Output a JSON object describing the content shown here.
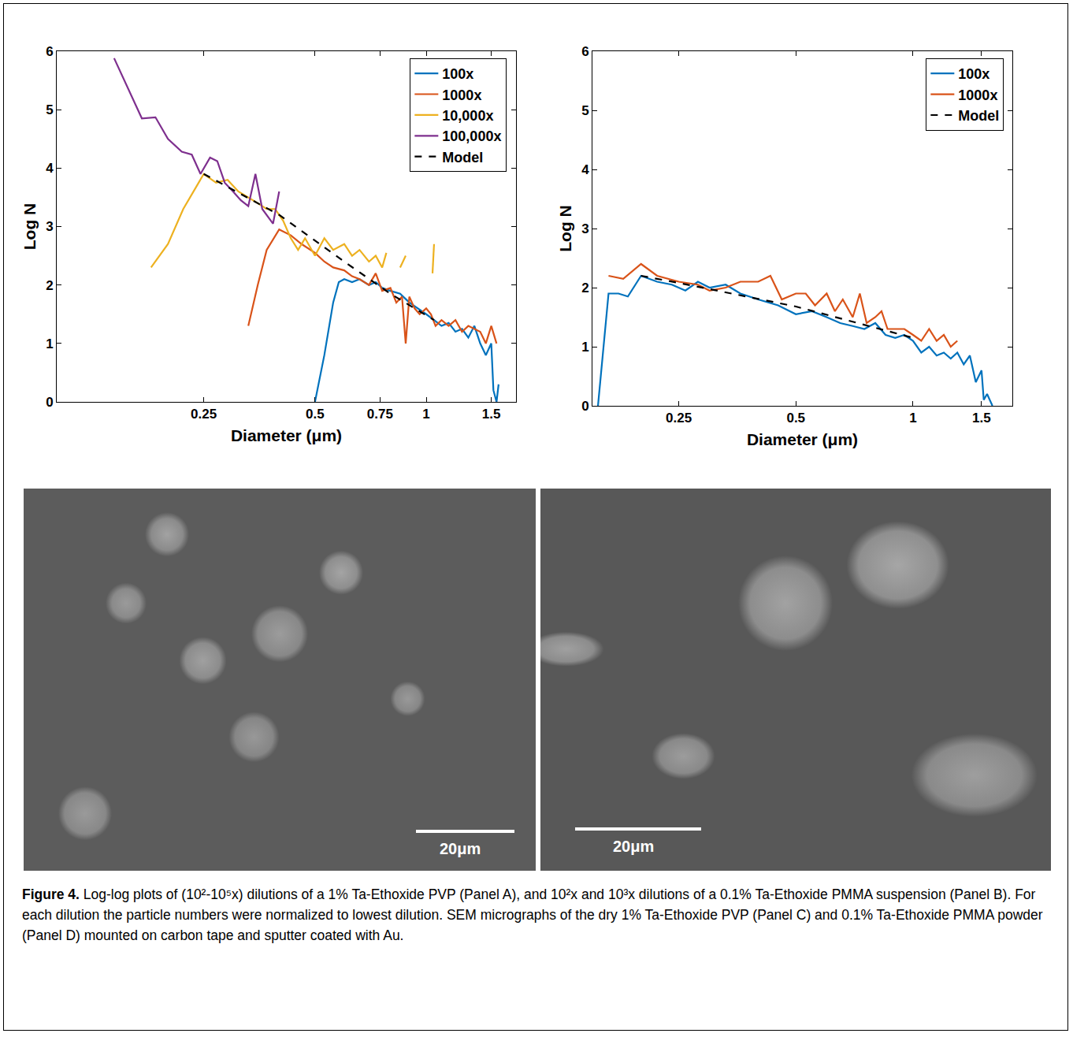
{
  "chart_data": [
    {
      "type": "line",
      "xlabel": "Diameter (μm)",
      "ylabel": "Log N",
      "log": "x",
      "grid": false,
      "legend": "top right",
      "xlim": [
        0.1,
        1.75
      ],
      "ylim": [
        0,
        6
      ],
      "xticks": [
        0.25,
        0.5,
        0.75,
        1,
        1.5
      ],
      "yticks": [
        0,
        1,
        2,
        3,
        4,
        5,
        6
      ],
      "series": [
        {
          "name": "100x",
          "color": "#0072BD",
          "line_style": "solid",
          "x": [
            0.5,
            0.53,
            0.56,
            0.58,
            0.6,
            0.63,
            0.66,
            0.7,
            0.73,
            0.76,
            0.8,
            0.85,
            0.9,
            0.95,
            1.0,
            1.05,
            1.1,
            1.15,
            1.2,
            1.25,
            1.3,
            1.35,
            1.4,
            1.45,
            1.5,
            1.52,
            1.55,
            1.57
          ],
          "values": [
            0,
            0.8,
            1.7,
            2.05,
            2.1,
            2.05,
            2.1,
            2.0,
            2.05,
            1.95,
            1.9,
            1.85,
            1.7,
            1.6,
            1.5,
            1.4,
            1.3,
            1.35,
            1.2,
            1.25,
            1.1,
            1.3,
            1.0,
            0.8,
            1.0,
            0.2,
            0,
            0.3
          ]
        },
        {
          "name": "1000x",
          "color": "#D95319",
          "line_style": "solid",
          "x": [
            0.33,
            0.35,
            0.37,
            0.4,
            0.43,
            0.46,
            0.5,
            0.53,
            0.56,
            0.6,
            0.63,
            0.66,
            0.7,
            0.73,
            0.76,
            0.8,
            0.83,
            0.86,
            0.88,
            0.9,
            0.93,
            0.96,
            1.0,
            1.03,
            1.06,
            1.1,
            1.15,
            1.2,
            1.25,
            1.3,
            1.4,
            1.45,
            1.5,
            1.55
          ],
          "values": [
            1.3,
            2.0,
            2.6,
            2.95,
            2.85,
            2.7,
            2.55,
            2.4,
            2.3,
            2.25,
            2.15,
            2.1,
            2.0,
            2.2,
            1.9,
            1.95,
            1.7,
            1.8,
            1.0,
            1.8,
            1.6,
            1.5,
            1.6,
            1.5,
            1.3,
            1.4,
            1.3,
            1.4,
            1.2,
            1.3,
            1.2,
            1.0,
            1.3,
            1.0
          ]
        },
        {
          "name": "10,000x",
          "color": "#EDB120",
          "line_style": "solid",
          "x": [
            0.18,
            0.2,
            0.22,
            0.25,
            0.27,
            0.29,
            0.31,
            0.33,
            0.35,
            0.37,
            0.39,
            0.41,
            0.43,
            0.45,
            0.47,
            0.5,
            0.53,
            0.56,
            0.6,
            0.63,
            0.66,
            0.7,
            0.73,
            0.76,
            0.78,
            0.8,
            0.85,
            0.88,
            0.9,
            1.04,
            1.05
          ],
          "values": [
            2.3,
            2.7,
            3.3,
            3.9,
            3.75,
            3.8,
            3.6,
            3.5,
            3.4,
            3.3,
            3.3,
            3.1,
            2.8,
            2.6,
            2.8,
            2.5,
            2.8,
            2.6,
            2.7,
            2.5,
            2.6,
            2.4,
            2.5,
            2.3,
            2.55,
            null,
            2.3,
            2.5,
            null,
            2.2,
            2.7
          ]
        },
        {
          "name": "100,000x",
          "color": "#7E2F8E",
          "line_style": "solid",
          "x": [
            0.143,
            0.16,
            0.17,
            0.185,
            0.2,
            0.218,
            0.232,
            0.245,
            0.26,
            0.272,
            0.285,
            0.3,
            0.315,
            0.33,
            0.345,
            0.36,
            0.37,
            0.385,
            0.4
          ],
          "values": [
            5.88,
            5.2,
            4.85,
            4.87,
            4.5,
            4.28,
            4.23,
            3.9,
            4.18,
            4.12,
            3.75,
            3.6,
            3.45,
            3.35,
            3.9,
            3.3,
            3.2,
            3.05,
            3.6
          ]
        },
        {
          "name": "Model",
          "color": "#000000",
          "line_style": "dashed",
          "x": [
            0.25,
            0.4,
            0.6,
            0.8,
            1.05
          ],
          "values": [
            3.9,
            3.2,
            2.4,
            1.85,
            1.4
          ]
        }
      ]
    },
    {
      "type": "line",
      "xlabel": "Diameter (μm)",
      "ylabel": "Log N",
      "log": "x",
      "grid": false,
      "legend": "top right",
      "xlim": [
        0.15,
        1.8
      ],
      "ylim": [
        0,
        6
      ],
      "xticks": [
        0.25,
        0.5,
        1,
        1.5
      ],
      "yticks": [
        0,
        1,
        2,
        3,
        4,
        5,
        6
      ],
      "series": [
        {
          "name": "100x",
          "color": "#0072BD",
          "line_style": "solid",
          "x": [
            0.155,
            0.165,
            0.175,
            0.185,
            0.2,
            0.22,
            0.24,
            0.26,
            0.28,
            0.3,
            0.33,
            0.36,
            0.4,
            0.45,
            0.5,
            0.55,
            0.6,
            0.65,
            0.7,
            0.75,
            0.8,
            0.85,
            0.9,
            0.95,
            1.0,
            1.05,
            1.1,
            1.15,
            1.2,
            1.25,
            1.3,
            1.35,
            1.4,
            1.45,
            1.5,
            1.52,
            1.55,
            1.6
          ],
          "values": [
            0,
            1.9,
            1.9,
            1.85,
            2.2,
            2.1,
            2.05,
            1.95,
            2.1,
            2.0,
            2.05,
            1.9,
            1.8,
            1.7,
            1.55,
            1.6,
            1.5,
            1.4,
            1.35,
            1.3,
            1.4,
            1.2,
            1.15,
            1.2,
            1.1,
            0.9,
            1.0,
            0.85,
            0.9,
            0.8,
            0.9,
            0.7,
            0.85,
            0.4,
            0.6,
            0.1,
            0.2,
            0
          ]
        },
        {
          "name": "1000x",
          "color": "#D95319",
          "line_style": "solid",
          "x": [
            0.165,
            0.18,
            0.2,
            0.22,
            0.25,
            0.28,
            0.3,
            0.33,
            0.36,
            0.4,
            0.43,
            0.46,
            0.5,
            0.53,
            0.56,
            0.6,
            0.63,
            0.66,
            0.7,
            0.73,
            0.76,
            0.8,
            0.83,
            0.86,
            0.9,
            0.95,
            1.0,
            1.05,
            1.1,
            1.15,
            1.2,
            1.25,
            1.3
          ],
          "values": [
            2.2,
            2.15,
            2.4,
            2.2,
            2.1,
            2.05,
            1.95,
            2.0,
            2.1,
            2.1,
            2.2,
            1.8,
            1.9,
            1.9,
            1.7,
            1.9,
            1.6,
            1.8,
            1.5,
            1.9,
            1.4,
            1.5,
            1.6,
            1.3,
            1.3,
            1.3,
            1.2,
            1.1,
            1.3,
            1.1,
            1.2,
            1.0,
            1.1
          ]
        },
        {
          "name": "Model",
          "color": "#000000",
          "line_style": "dashed",
          "x": [
            0.2,
            0.25,
            0.5,
            1.0
          ],
          "values": [
            2.2,
            2.08,
            1.68,
            1.15
          ]
        }
      ]
    }
  ],
  "micrographs": [
    {
      "scale_bar": "20μm"
    },
    {
      "scale_bar": "20μm"
    }
  ],
  "caption": {
    "label": "Figure 4.",
    "text": "Log-log plots of (10²-10⁵x) dilutions of a 1% Ta-Ethoxide PVP (Panel A), and 10²x and 10³x dilutions of a 0.1% Ta-Ethoxide PMMA suspension (Panel B). For each dilution the particle numbers were normalized to lowest dilution. SEM micrographs of the dry 1% Ta-Ethoxide PVP (Panel C) and 0.1% Ta-Ethoxide PMMA powder (Panel D) mounted on carbon tape and sputter coated with Au."
  }
}
